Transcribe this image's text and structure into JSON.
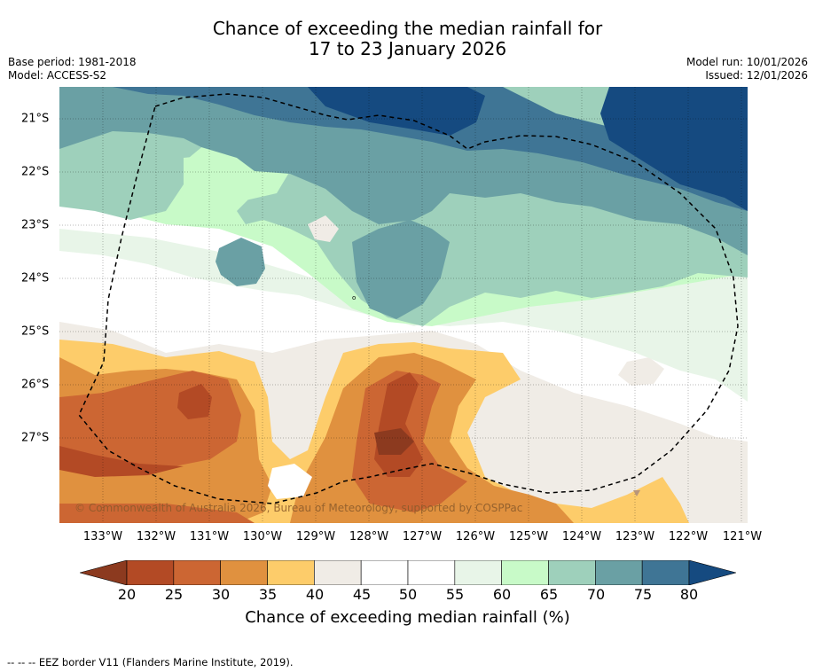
{
  "title": {
    "line1": "Chance of exceeding the median rainfall for",
    "line2": "17 to 23 January 2026"
  },
  "meta": {
    "base_period": "Base period: 1981-2018",
    "model": "Model: ACCESS-S2",
    "model_run": "Model run: 10/01/2026",
    "issued": "Issued: 12/01/2026"
  },
  "map": {
    "x_ticks": [
      "133°W",
      "132°W",
      "131°W",
      "130°W",
      "129°W",
      "128°W",
      "127°W",
      "126°W",
      "125°W",
      "124°W",
      "123°W",
      "122°W",
      "121°W"
    ],
    "y_ticks": [
      "21°S",
      "22°S",
      "23°S",
      "24°S",
      "25°S",
      "26°S",
      "27°S"
    ],
    "copyright": "© Commonwealth of Australia 2026, Bureau of Meteorology, supported by COSPPac",
    "lon_range": [
      -133.8,
      -120.9
    ],
    "lat_range": [
      -20.4,
      -28.6
    ]
  },
  "colorbar": {
    "ticks": [
      "20",
      "25",
      "30",
      "35",
      "40",
      "45",
      "50",
      "55",
      "60",
      "65",
      "70",
      "75",
      "80"
    ],
    "colors": [
      "#8c3a1f",
      "#b34a25",
      "#cc6633",
      "#e0913f",
      "#fdcc6a",
      "#f0ece6",
      "#ffffff",
      "#ffffff",
      "#e8f5e8",
      "#c8fac8",
      "#9ed0bb",
      "#6aa0a4",
      "#3f7595",
      "#154a80"
    ],
    "label": "Chance of exceeding median rainfall (%)"
  },
  "legend": {
    "eez": "--  --  -- EEZ border V11 (Flanders Marine Institute, 2019)."
  }
}
